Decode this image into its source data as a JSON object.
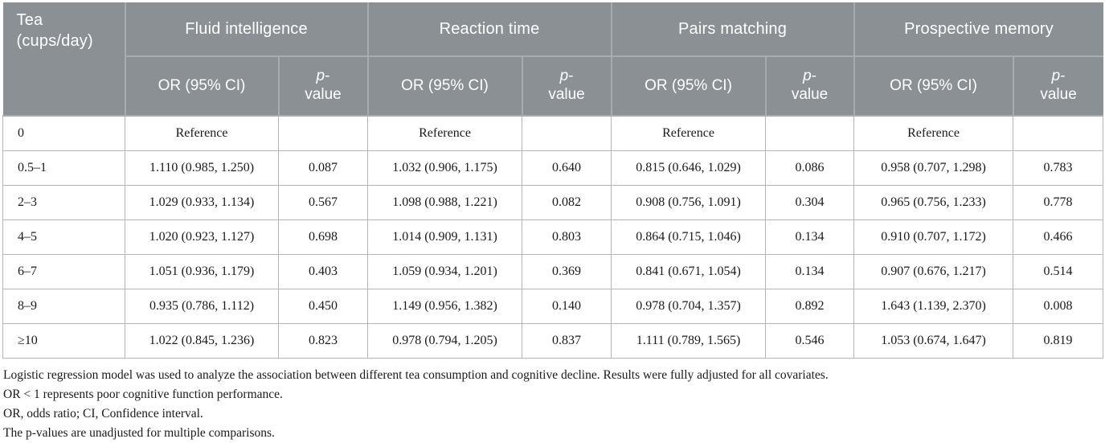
{
  "colors": {
    "header_bg": "#8a9093",
    "header_divider": "#a7acae",
    "header_text": "#ffffff",
    "body_border": "#b3b6b8",
    "text": "#1a1a1a"
  },
  "table": {
    "row_header_label": "Tea (cups/day)",
    "groups": [
      {
        "label": "Fluid intelligence"
      },
      {
        "label": "Reaction time"
      },
      {
        "label": "Pairs matching"
      },
      {
        "label": "Prospective memory"
      }
    ],
    "or_header": "OR (95% CI)",
    "p_header": {
      "p": "p",
      "hyphen": "-",
      "value": "value"
    },
    "rows": [
      {
        "tea": "0",
        "cells": [
          {
            "or": "Reference",
            "p": ""
          },
          {
            "or": "Reference",
            "p": ""
          },
          {
            "or": "Reference",
            "p": ""
          },
          {
            "or": "Reference",
            "p": ""
          }
        ]
      },
      {
        "tea": "0.5–1",
        "cells": [
          {
            "or": "1.110 (0.985, 1.250)",
            "p": "0.087"
          },
          {
            "or": "1.032 (0.906, 1.175)",
            "p": "0.640"
          },
          {
            "or": "0.815 (0.646, 1.029)",
            "p": "0.086"
          },
          {
            "or": "0.958 (0.707, 1.298)",
            "p": "0.783"
          }
        ]
      },
      {
        "tea": "2–3",
        "cells": [
          {
            "or": "1.029 (0.933, 1.134)",
            "p": "0.567"
          },
          {
            "or": "1.098 (0.988, 1.221)",
            "p": "0.082"
          },
          {
            "or": "0.908 (0.756, 1.091)",
            "p": "0.304"
          },
          {
            "or": "0.965 (0.756, 1.233)",
            "p": "0.778"
          }
        ]
      },
      {
        "tea": "4–5",
        "cells": [
          {
            "or": "1.020 (0.923, 1.127)",
            "p": "0.698"
          },
          {
            "or": "1.014 (0.909, 1.131)",
            "p": "0.803"
          },
          {
            "or": "0.864 (0.715, 1.046)",
            "p": "0.134"
          },
          {
            "or": "0.910 (0.707, 1.172)",
            "p": "0.466"
          }
        ]
      },
      {
        "tea": "6–7",
        "cells": [
          {
            "or": "1.051 (0.936, 1.179)",
            "p": "0.403"
          },
          {
            "or": "1.059 (0.934, 1.201)",
            "p": "0.369"
          },
          {
            "or": "0.841 (0.671, 1.054)",
            "p": "0.134"
          },
          {
            "or": "0.907 (0.676, 1.217)",
            "p": "0.514"
          }
        ]
      },
      {
        "tea": "8–9",
        "cells": [
          {
            "or": "0.935 (0.786, 1.112)",
            "p": "0.450"
          },
          {
            "or": "1.149 (0.956, 1.382)",
            "p": "0.140"
          },
          {
            "or": "0.978 (0.704, 1.357)",
            "p": "0.892"
          },
          {
            "or": "1.643 (1.139, 2.370)",
            "p": "0.008"
          }
        ]
      },
      {
        "tea": "≥10",
        "cells": [
          {
            "or": "1.022 (0.845, 1.236)",
            "p": "0.823"
          },
          {
            "or": "0.978 (0.794, 1.205)",
            "p": "0.837"
          },
          {
            "or": "1.111 (0.789, 1.565)",
            "p": "0.546"
          },
          {
            "or": "1.053 (0.674, 1.647)",
            "p": "0.819"
          }
        ]
      }
    ],
    "footnotes": [
      "Logistic regression model was used to analyze the association between different tea consumption and cognitive decline. Results were fully adjusted for all covariates.",
      "OR < 1 represents poor cognitive function performance.",
      "OR, odds ratio; CI, Confidence interval.",
      "The p-values are unadjusted for multiple comparisons."
    ]
  }
}
